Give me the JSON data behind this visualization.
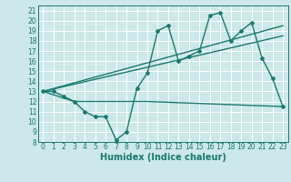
{
  "xlabel": "Humidex (Indice chaleur)",
  "bg_color": "#cce8e8",
  "grid_color": "#ffffff",
  "line_color": "#1a7a6e",
  "xlim": [
    -0.5,
    23.5
  ],
  "ylim": [
    8,
    21.5
  ],
  "xticks": [
    0,
    1,
    2,
    3,
    4,
    5,
    6,
    7,
    8,
    9,
    10,
    11,
    12,
    13,
    14,
    15,
    16,
    17,
    18,
    19,
    20,
    21,
    22,
    23
  ],
  "yticks": [
    8,
    9,
    10,
    11,
    12,
    13,
    14,
    15,
    16,
    17,
    18,
    19,
    20,
    21
  ],
  "series_main": {
    "x": [
      0,
      1,
      2,
      3,
      4,
      5,
      6,
      7,
      8,
      9,
      10,
      11,
      12,
      13,
      14,
      15,
      16,
      17,
      18,
      19,
      20,
      21,
      22,
      23
    ],
    "y": [
      13,
      13,
      12.5,
      12,
      11,
      10.5,
      10.5,
      8.2,
      9.0,
      13.3,
      14.8,
      19.0,
      19.5,
      16.0,
      16.5,
      17.0,
      20.5,
      20.8,
      18.0,
      19.0,
      19.8,
      16.3,
      14.3,
      11.5
    ]
  },
  "series_trend1": {
    "x": [
      0,
      23
    ],
    "y": [
      13.0,
      19.5
    ]
  },
  "series_trend2": {
    "x": [
      0,
      23
    ],
    "y": [
      13.0,
      18.5
    ]
  },
  "series_flat": {
    "x": [
      0,
      3,
      10,
      23
    ],
    "y": [
      13.0,
      12.0,
      12.0,
      11.5
    ]
  },
  "tick_fontsize": 5.5,
  "xlabel_fontsize": 7.0,
  "linewidth": 1.0,
  "markersize": 2.0
}
